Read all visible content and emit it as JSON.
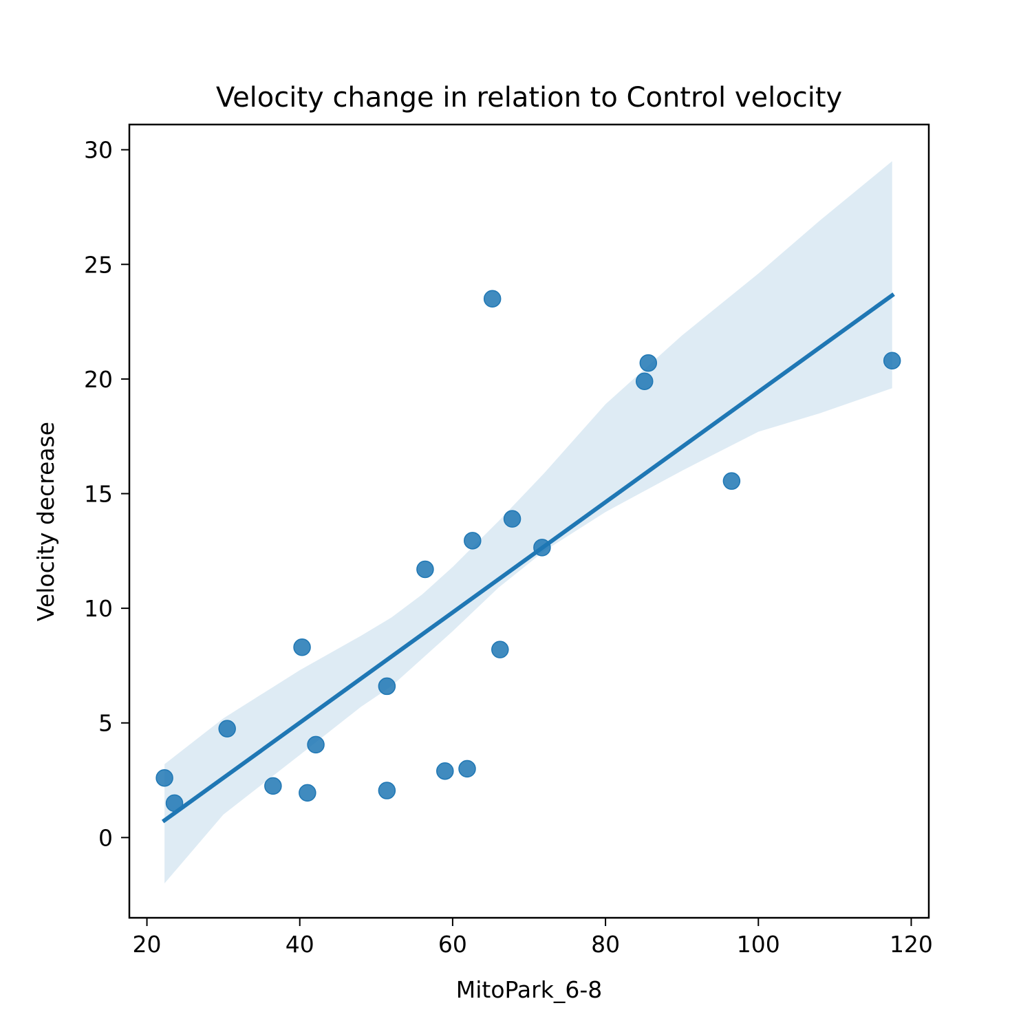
{
  "chart_data": {
    "type": "scatter",
    "title": "Velocity change in relation to Control velocity",
    "xlabel": "MitoPark_6-8",
    "ylabel": "Velocity decrease",
    "xlim": [
      17.7,
      122.3
    ],
    "ylim": [
      -3.5,
      31.1
    ],
    "x_ticks": [
      20,
      40,
      60,
      80,
      100,
      120
    ],
    "y_ticks": [
      0,
      5,
      10,
      15,
      20,
      25,
      30
    ],
    "grid": false,
    "colors": {
      "points": "#1f77b4",
      "line": "#1f77b4",
      "band": "#1f77b4"
    },
    "points": [
      {
        "x": 22.3,
        "y": 2.6
      },
      {
        "x": 23.6,
        "y": 1.5
      },
      {
        "x": 30.5,
        "y": 4.75
      },
      {
        "x": 36.5,
        "y": 2.25
      },
      {
        "x": 40.3,
        "y": 8.3
      },
      {
        "x": 41.0,
        "y": 1.95
      },
      {
        "x": 42.1,
        "y": 4.05
      },
      {
        "x": 51.4,
        "y": 6.6
      },
      {
        "x": 51.4,
        "y": 2.05
      },
      {
        "x": 56.4,
        "y": 11.7
      },
      {
        "x": 59.0,
        "y": 2.9
      },
      {
        "x": 61.9,
        "y": 3.0
      },
      {
        "x": 62.6,
        "y": 12.95
      },
      {
        "x": 65.2,
        "y": 23.5
      },
      {
        "x": 66.2,
        "y": 8.2
      },
      {
        "x": 67.8,
        "y": 13.9
      },
      {
        "x": 71.7,
        "y": 12.65
      },
      {
        "x": 85.1,
        "y": 19.9
      },
      {
        "x": 85.6,
        "y": 20.7
      },
      {
        "x": 96.5,
        "y": 15.55
      },
      {
        "x": 117.5,
        "y": 20.8
      }
    ],
    "regression_line": [
      {
        "x": 22.3,
        "y": 0.75
      },
      {
        "x": 117.5,
        "y": 23.65
      }
    ],
    "confidence_band": {
      "x": [
        22.3,
        30,
        40,
        48,
        52,
        56,
        60,
        66,
        72,
        80,
        90,
        100,
        108,
        117.5
      ],
      "upper": [
        3.2,
        5.2,
        7.3,
        8.8,
        9.6,
        10.6,
        11.8,
        13.8,
        15.9,
        18.9,
        21.9,
        24.6,
        26.9,
        29.5
      ],
      "lower": [
        -2.0,
        1.0,
        3.6,
        5.7,
        6.6,
        7.8,
        9.0,
        10.9,
        12.5,
        14.2,
        16.0,
        17.7,
        18.5,
        19.6
      ]
    }
  }
}
